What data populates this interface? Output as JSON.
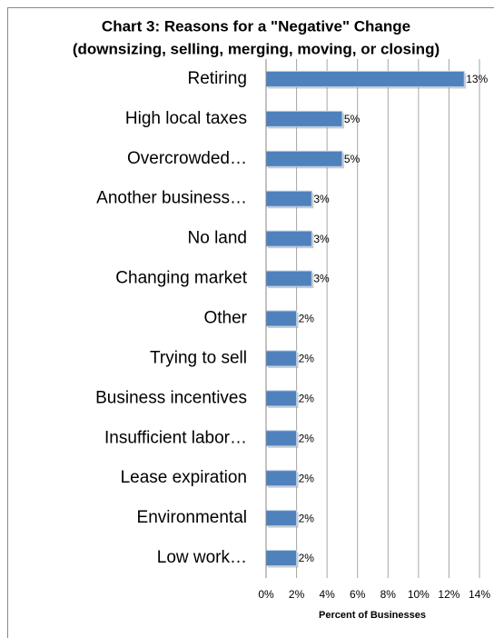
{
  "chart_data": {
    "type": "bar",
    "orientation": "horizontal",
    "title": [
      "Chart 3:  Reasons for a \"Negative\" Change",
      "(downsizing, selling, merging, moving, or closing)"
    ],
    "x_label": "Percent of Businesses",
    "categories": [
      "Retiring",
      "High local taxes",
      "Overcrowded…",
      "Another business…",
      "No land",
      "Changing market",
      "Other",
      "Trying to sell",
      "Business incentives",
      "Insufficient labor…",
      "Lease expiration",
      "Environmental",
      "Low work…"
    ],
    "values": [
      13,
      5,
      5,
      3,
      3,
      3,
      2,
      2,
      2,
      2,
      2,
      2,
      2
    ],
    "value_labels": [
      "13%",
      "5%",
      "5%",
      "3%",
      "3%",
      "3%",
      "2%",
      "2%",
      "2%",
      "2%",
      "2%",
      "2%",
      "2%"
    ],
    "color": "#4f81bd",
    "xlim": [
      0,
      14
    ],
    "xticks": [
      {
        "value": 0,
        "label": "0%"
      },
      {
        "value": 2,
        "label": "2%"
      },
      {
        "value": 4,
        "label": "4%"
      },
      {
        "value": 6,
        "label": "6%"
      },
      {
        "value": 8,
        "label": "8%"
      },
      {
        "value": 10,
        "label": "10%"
      },
      {
        "value": 12,
        "label": "12%"
      },
      {
        "value": 14,
        "label": "14%"
      }
    ],
    "grid": true
  }
}
